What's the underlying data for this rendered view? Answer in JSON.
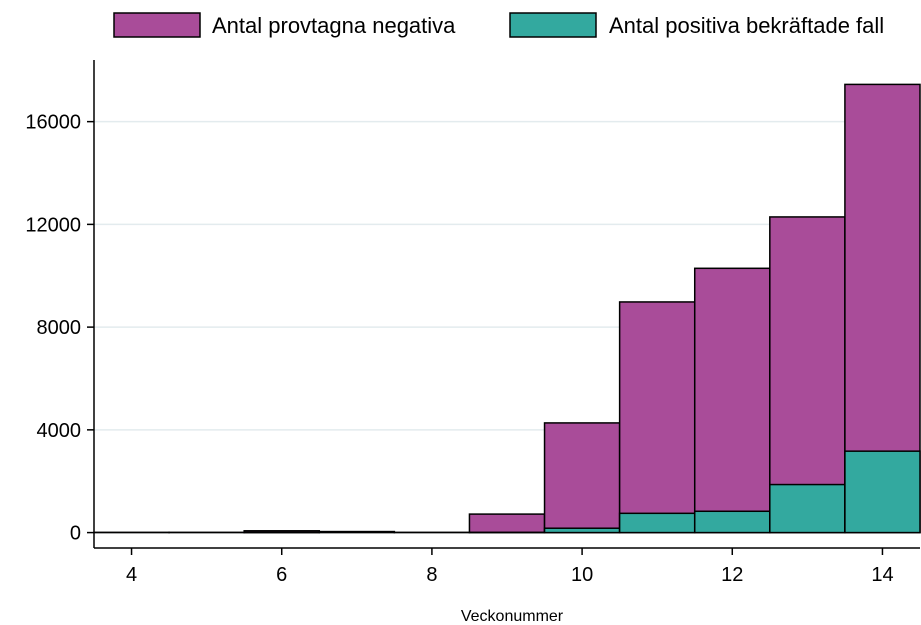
{
  "chart_data": {
    "type": "bar",
    "stacked": true,
    "x": [
      4,
      5,
      6,
      7,
      8,
      9,
      10,
      11,
      12,
      13,
      14
    ],
    "series": [
      {
        "name": "Antal provtagna negativa",
        "color": "#a94c99",
        "values": [
          10,
          10,
          60,
          40,
          10,
          710,
          4100,
          8230,
          9460,
          10420,
          14280
        ]
      },
      {
        "name": "Antal positiva bekräftade fall",
        "color": "#33a99f",
        "values": [
          0,
          0,
          10,
          0,
          0,
          10,
          170,
          750,
          830,
          1870,
          3170
        ]
      }
    ],
    "xlabel": "Veckonummer",
    "ylabel": "",
    "xticks": [
      4,
      6,
      8,
      10,
      12,
      14
    ],
    "yticks": [
      0,
      4000,
      8000,
      12000,
      16000
    ],
    "xlim": [
      3.5,
      14.5
    ],
    "ylim": [
      -600,
      18400
    ],
    "grid": true,
    "legend_position": "top"
  }
}
